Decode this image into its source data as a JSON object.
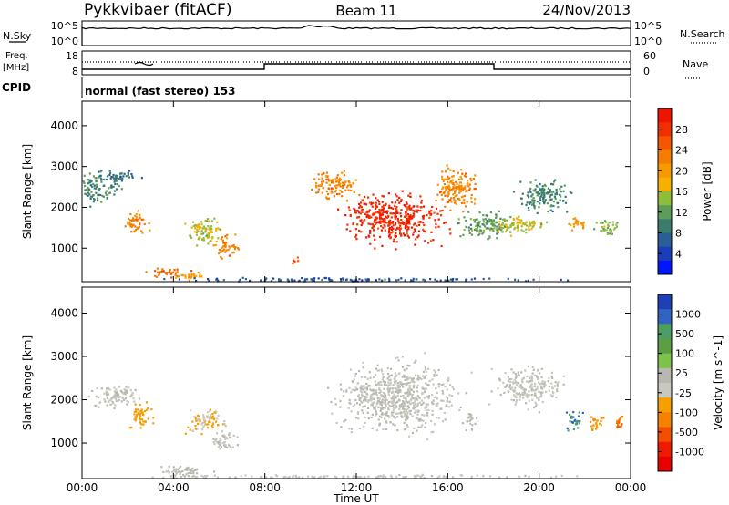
{
  "header": {
    "station": "Pykkvibaer (fitACF)",
    "beam": "Beam 11",
    "date": "24/Nov/2013"
  },
  "panels": {
    "nsky": {
      "left_label": "N.Sky",
      "left_ticks": [
        "10^5",
        "10^0"
      ],
      "right_ticks": [
        "10^5",
        "10^0"
      ],
      "right_label": "N.Search"
    },
    "freq": {
      "left_label_line1": "Freq.",
      "left_label_line2": "[MHz]",
      "left_ticks": [
        "18",
        "8"
      ],
      "right_ticks": [
        "60",
        "0"
      ],
      "right_label": "Nave"
    },
    "cpid": {
      "label": "CPID",
      "value": "normal (fast stereo) 153"
    }
  },
  "chart_data": [
    {
      "type": "heatmap",
      "title": "",
      "xlabel": "Time UT",
      "ylabel": "Slant Range [km]",
      "x_ticks": [
        "00:00",
        "04:00",
        "08:00",
        "12:00",
        "16:00",
        "20:00",
        "00:00"
      ],
      "y_ticks": [
        1000,
        2000,
        3000,
        4000
      ],
      "ylim": [
        180,
        4600
      ],
      "colorbar": {
        "label": "Power [dB]",
        "ticks": [
          4,
          8,
          12,
          16,
          20,
          24,
          28
        ],
        "range": [
          0,
          32
        ],
        "colors": [
          "#0016ff",
          "#1a3eb8",
          "#2a5f96",
          "#3b7d6d",
          "#5e9c5a",
          "#8fbd3a",
          "#f6b000",
          "#f79a00",
          "#f57e00",
          "#f55700",
          "#f13000",
          "#ee1400"
        ]
      },
      "blobs": [
        {
          "t": 0.6,
          "r": 2500,
          "dt": 1.3,
          "dr": 520,
          "v": 10
        },
        {
          "t": 1.6,
          "r": 2780,
          "dt": 1.2,
          "dr": 180,
          "v": 8
        },
        {
          "t": 2.3,
          "r": 1600,
          "dt": 0.7,
          "dr": 400,
          "v": 22
        },
        {
          "t": 5.3,
          "r": 1450,
          "dt": 1.2,
          "dr": 420,
          "v": 16
        },
        {
          "t": 6.3,
          "r": 1050,
          "dt": 0.7,
          "dr": 380,
          "v": 22
        },
        {
          "t": 3.8,
          "r": 420,
          "dt": 1.2,
          "dr": 160,
          "v": 24
        },
        {
          "t": 4.7,
          "r": 320,
          "dt": 1.2,
          "dr": 120,
          "v": 20
        },
        {
          "t": 13.5,
          "r": 1750,
          "dt": 2.9,
          "dr": 850,
          "v": 29
        },
        {
          "t": 11.0,
          "r": 2600,
          "dt": 1.2,
          "dr": 520,
          "v": 22
        },
        {
          "t": 16.3,
          "r": 2500,
          "dt": 1.3,
          "dr": 700,
          "v": 22
        },
        {
          "t": 17.6,
          "r": 1600,
          "dt": 1.6,
          "dr": 450,
          "v": 12
        },
        {
          "t": 19.2,
          "r": 1600,
          "dt": 1.4,
          "dr": 320,
          "v": 16
        },
        {
          "t": 20.2,
          "r": 2300,
          "dt": 1.5,
          "dr": 550,
          "v": 10
        },
        {
          "t": 21.6,
          "r": 1600,
          "dt": 0.5,
          "dr": 300,
          "v": 20
        },
        {
          "t": 22.9,
          "r": 1550,
          "dt": 0.7,
          "dr": 300,
          "v": 14
        },
        {
          "t": 9.3,
          "r": 720,
          "dt": 0.3,
          "dr": 100,
          "v": 26
        },
        {
          "t": 12.0,
          "r": 250,
          "dt": 12.0,
          "dr": 60,
          "v": 6
        }
      ]
    },
    {
      "type": "heatmap",
      "title": "",
      "xlabel": "Time UT",
      "ylabel": "Slant Range [km]",
      "x_ticks": [
        "00:00",
        "04:00",
        "08:00",
        "12:00",
        "16:00",
        "20:00",
        "00:00"
      ],
      "y_ticks": [
        1000,
        2000,
        3000,
        4000
      ],
      "ylim": [
        180,
        4600
      ],
      "colorbar": {
        "label": "Velocity [m s^-1]",
        "ticks": [
          1000,
          500,
          100,
          25,
          -25,
          -100,
          -500,
          -1000
        ],
        "range": [
          -1200,
          1200
        ],
        "colors": [
          "#1f3fb7",
          "#2f64c2",
          "#4c9e63",
          "#5a9e46",
          "#7dc24a",
          "#b8b8b0",
          "#c8c8c0",
          "#f5a000",
          "#f58200",
          "#f24f00",
          "#ef1b00",
          "#e80000"
        ]
      },
      "blobs": [
        {
          "t": 1.4,
          "r": 2100,
          "dt": 1.3,
          "dr": 400,
          "v": 0
        },
        {
          "t": 2.5,
          "r": 1650,
          "dt": 0.8,
          "dr": 400,
          "v": -300
        },
        {
          "t": 5.4,
          "r": 1500,
          "dt": 1.2,
          "dr": 400,
          "v": -200
        },
        {
          "t": 6.2,
          "r": 1050,
          "dt": 0.9,
          "dr": 300,
          "v": 0
        },
        {
          "t": 4.3,
          "r": 380,
          "dt": 1.6,
          "dr": 200,
          "v": 60
        },
        {
          "t": 13.8,
          "r": 2100,
          "dt": 3.6,
          "dr": 1100,
          "v": 0
        },
        {
          "t": 16.9,
          "r": 1500,
          "dt": 0.4,
          "dr": 300,
          "v": 90
        },
        {
          "t": 19.5,
          "r": 2300,
          "dt": 2.0,
          "dr": 600,
          "v": 0
        },
        {
          "t": 21.5,
          "r": 1550,
          "dt": 0.6,
          "dr": 300,
          "v": 800
        },
        {
          "t": 22.5,
          "r": 1500,
          "dt": 0.5,
          "dr": 300,
          "v": -400
        },
        {
          "t": 23.5,
          "r": 1500,
          "dt": 0.4,
          "dr": 250,
          "v": -600
        },
        {
          "t": 12.0,
          "r": 250,
          "dt": 12.0,
          "dr": 60,
          "v": -50
        }
      ]
    }
  ]
}
